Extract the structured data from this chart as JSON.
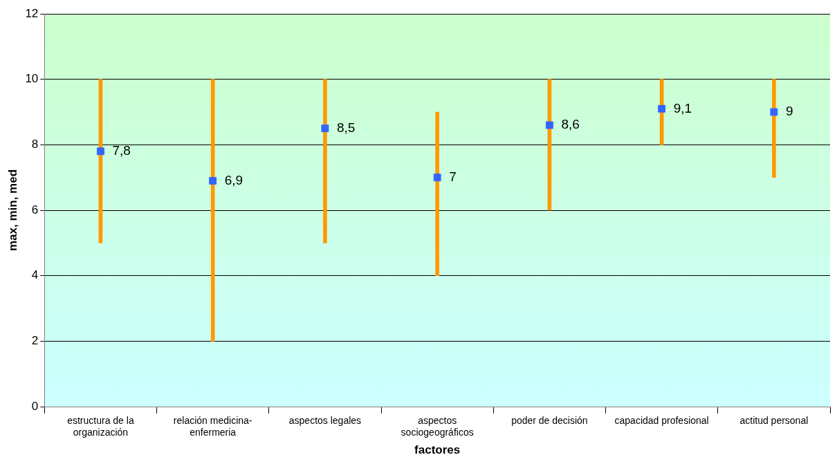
{
  "chart_data": {
    "type": "bar",
    "xlabel": "factores",
    "ylabel": "max, min, med",
    "categories": [
      "estructura de la organización",
      "relación medicina-enfermeria",
      "aspectos legales",
      "aspectos sociogeográficos",
      "poder de decisión",
      "capacidad profesional",
      "actitud personal"
    ],
    "series": [
      {
        "color": "#ff9900",
        "base": [
          5,
          2,
          5,
          4,
          6,
          8,
          7
        ],
        "values": [
          5,
          8,
          5,
          5,
          4,
          2,
          3
        ]
      },
      {
        "type": "scatter",
        "color": "#3366ff",
        "x": [
          "estructura de la organización",
          "relación medicina-enfermeria",
          "aspectos legales",
          "aspectos sociogeográficos",
          "poder de decisión",
          "capacidad profesional",
          "actitud personal"
        ],
        "values": [
          7.8,
          6.9,
          8.5,
          7,
          8.6,
          9.1,
          9
        ],
        "value_labels": [
          "7,8",
          "6,9",
          "8,5",
          "7",
          "8,6",
          "9,1",
          "9"
        ],
        "marker": "square"
      }
    ],
    "ylim": [
      0,
      12
    ],
    "yticks": [
      0,
      2,
      4,
      6,
      8,
      10,
      12
    ],
    "grid": "y",
    "legend": false
  }
}
